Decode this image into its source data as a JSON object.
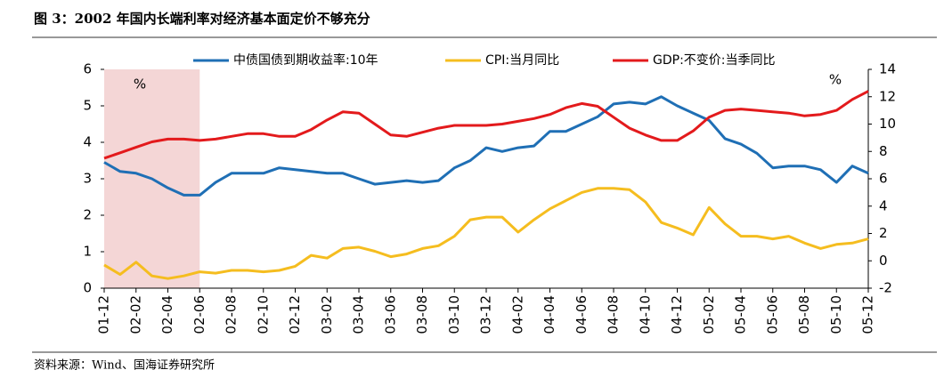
{
  "title": "图 3：2002 年国内长端利率对经济基本面定价不够充分",
  "source": "资料来源：Wind、国海证券研究所",
  "chart_data": {
    "type": "line",
    "categories": [
      "01-12",
      null,
      "02-02",
      null,
      "02-04",
      null,
      "02-06",
      null,
      "02-08",
      null,
      "02-10",
      null,
      "02-12",
      null,
      "03-02",
      null,
      "03-04",
      null,
      "03-06",
      null,
      "03-08",
      null,
      "03-10",
      null,
      "03-12",
      null,
      "04-02",
      null,
      "04-04",
      null,
      "04-06",
      null,
      "04-08",
      null,
      "04-10",
      null,
      "04-12",
      null,
      "05-02",
      null,
      "05-04",
      null,
      "05-06",
      null,
      "05-08",
      null,
      "05-10",
      null,
      "05-12"
    ],
    "series": [
      {
        "name": "中债国债到期收益率:10年",
        "color": "#1f6fb5",
        "axis": "y",
        "values": [
          3.45,
          3.2,
          3.15,
          3.0,
          2.75,
          2.55,
          2.55,
          2.9,
          3.15,
          3.15,
          3.15,
          3.3,
          3.25,
          3.2,
          3.15,
          3.15,
          3.0,
          2.85,
          2.9,
          2.95,
          2.9,
          2.95,
          3.3,
          3.5,
          3.85,
          3.75,
          3.85,
          3.9,
          4.3,
          4.3,
          4.5,
          4.7,
          5.05,
          5.1,
          5.05,
          5.25,
          5.0,
          4.8,
          4.6,
          4.1,
          3.95,
          3.7,
          3.3,
          3.35,
          3.35,
          3.25,
          2.9,
          3.35,
          3.15
        ]
      },
      {
        "name": "CPI:当月同比",
        "color": "#f5bd1f",
        "axis": "y2",
        "values": [
          -0.3,
          -1.0,
          -0.1,
          -1.1,
          -1.3,
          -1.1,
          -0.8,
          -0.9,
          -0.7,
          -0.7,
          -0.8,
          -0.7,
          -0.4,
          0.4,
          0.2,
          0.9,
          1.0,
          0.7,
          0.3,
          0.5,
          0.9,
          1.1,
          1.8,
          3.0,
          3.2,
          3.2,
          2.1,
          3.0,
          3.8,
          4.4,
          5.0,
          5.3,
          5.3,
          5.2,
          4.3,
          2.8,
          2.4,
          1.9,
          3.9,
          2.7,
          1.8,
          1.8,
          1.6,
          1.8,
          1.3,
          0.9,
          1.2,
          1.3,
          1.6
        ]
      },
      {
        "name": "GDP:不变价:当季同比",
        "color": "#e31a1c",
        "axis": "y2",
        "values": [
          7.5,
          7.9,
          8.3,
          8.7,
          8.9,
          8.9,
          8.8,
          8.9,
          9.1,
          9.3,
          9.3,
          9.1,
          9.1,
          9.6,
          10.3,
          10.9,
          10.8,
          10.0,
          9.2,
          9.1,
          9.4,
          9.7,
          9.9,
          9.9,
          9.9,
          10.0,
          10.2,
          10.4,
          10.7,
          11.2,
          11.5,
          11.3,
          10.5,
          9.7,
          9.2,
          8.8,
          8.8,
          9.5,
          10.5,
          11.0,
          11.1,
          11.0,
          10.9,
          10.8,
          10.6,
          10.7,
          11.0,
          11.8,
          12.4
        ]
      }
    ],
    "ylim": [
      0,
      6
    ],
    "yticks": [
      0,
      1,
      2,
      3,
      4,
      5,
      6
    ],
    "y2lim": [
      -2,
      14
    ],
    "y2ticks": [
      -2,
      0,
      2,
      4,
      6,
      8,
      10,
      12,
      14
    ],
    "y_unit": "%",
    "y2_unit": "%",
    "highlight": {
      "from": "01-12",
      "to": "02-06",
      "color": "#f4d6d6"
    }
  }
}
